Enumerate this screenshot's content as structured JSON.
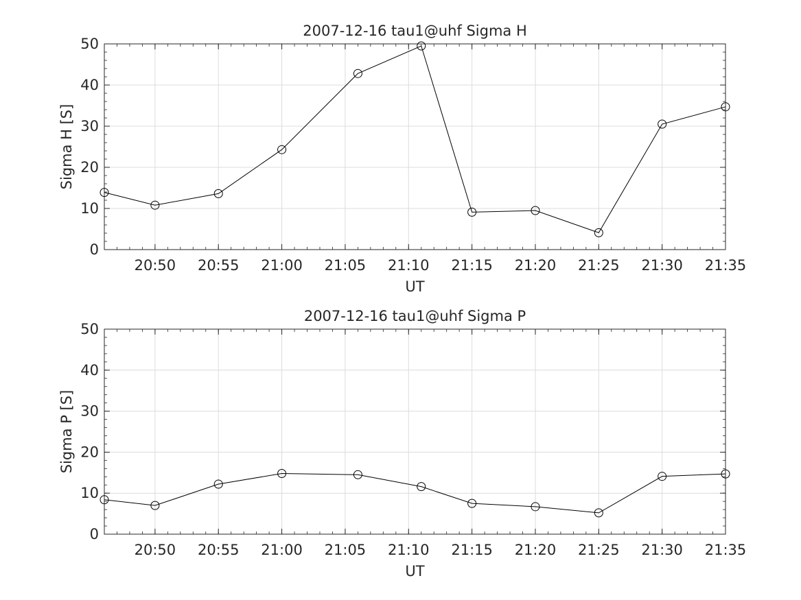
{
  "colors": {
    "line": "#000000",
    "grid": "#dcdcdc",
    "axis": "#262626",
    "background": "#ffffff"
  },
  "chart_data": [
    {
      "type": "line",
      "title": "2007-12-16  tau1@uhf Sigma H",
      "xlabel": "UT",
      "ylabel": "Sigma H [S]",
      "xlim": [
        "20:46",
        "21:35"
      ],
      "ylim": [
        0,
        50
      ],
      "grid": true,
      "marker": "open-circle",
      "x_ticks": [
        "20:50",
        "20:55",
        "21:00",
        "21:05",
        "21:10",
        "21:15",
        "21:20",
        "21:25",
        "21:30",
        "21:35"
      ],
      "y_ticks": [
        "0",
        "10",
        "20",
        "30",
        "40",
        "50"
      ],
      "series": [
        {
          "x": [
            "20:46",
            "20:50",
            "20:55",
            "21:00",
            "21:06",
            "21:11",
            "21:15",
            "21:20",
            "21:25",
            "21:30",
            "21:35"
          ],
          "values": [
            13.9,
            10.8,
            13.6,
            24.3,
            42.8,
            49.5,
            9.1,
            9.5,
            4.1,
            30.5,
            34.7
          ]
        }
      ]
    },
    {
      "type": "line",
      "title": "2007-12-16  tau1@uhf Sigma P",
      "xlabel": "UT",
      "ylabel": "Sigma P [S]",
      "xlim": [
        "20:46",
        "21:35"
      ],
      "ylim": [
        0,
        50
      ],
      "grid": true,
      "marker": "open-circle",
      "x_ticks": [
        "20:50",
        "20:55",
        "21:00",
        "21:05",
        "21:10",
        "21:15",
        "21:20",
        "21:25",
        "21:30",
        "21:35"
      ],
      "y_ticks": [
        "0",
        "10",
        "20",
        "30",
        "40",
        "50"
      ],
      "series": [
        {
          "x": [
            "20:46",
            "20:50",
            "20:55",
            "21:00",
            "21:06",
            "21:11",
            "21:15",
            "21:20",
            "21:25",
            "21:30",
            "21:35"
          ],
          "values": [
            8.4,
            7.0,
            12.2,
            14.8,
            14.5,
            11.6,
            7.5,
            6.7,
            5.2,
            14.1,
            14.7
          ]
        }
      ]
    }
  ]
}
